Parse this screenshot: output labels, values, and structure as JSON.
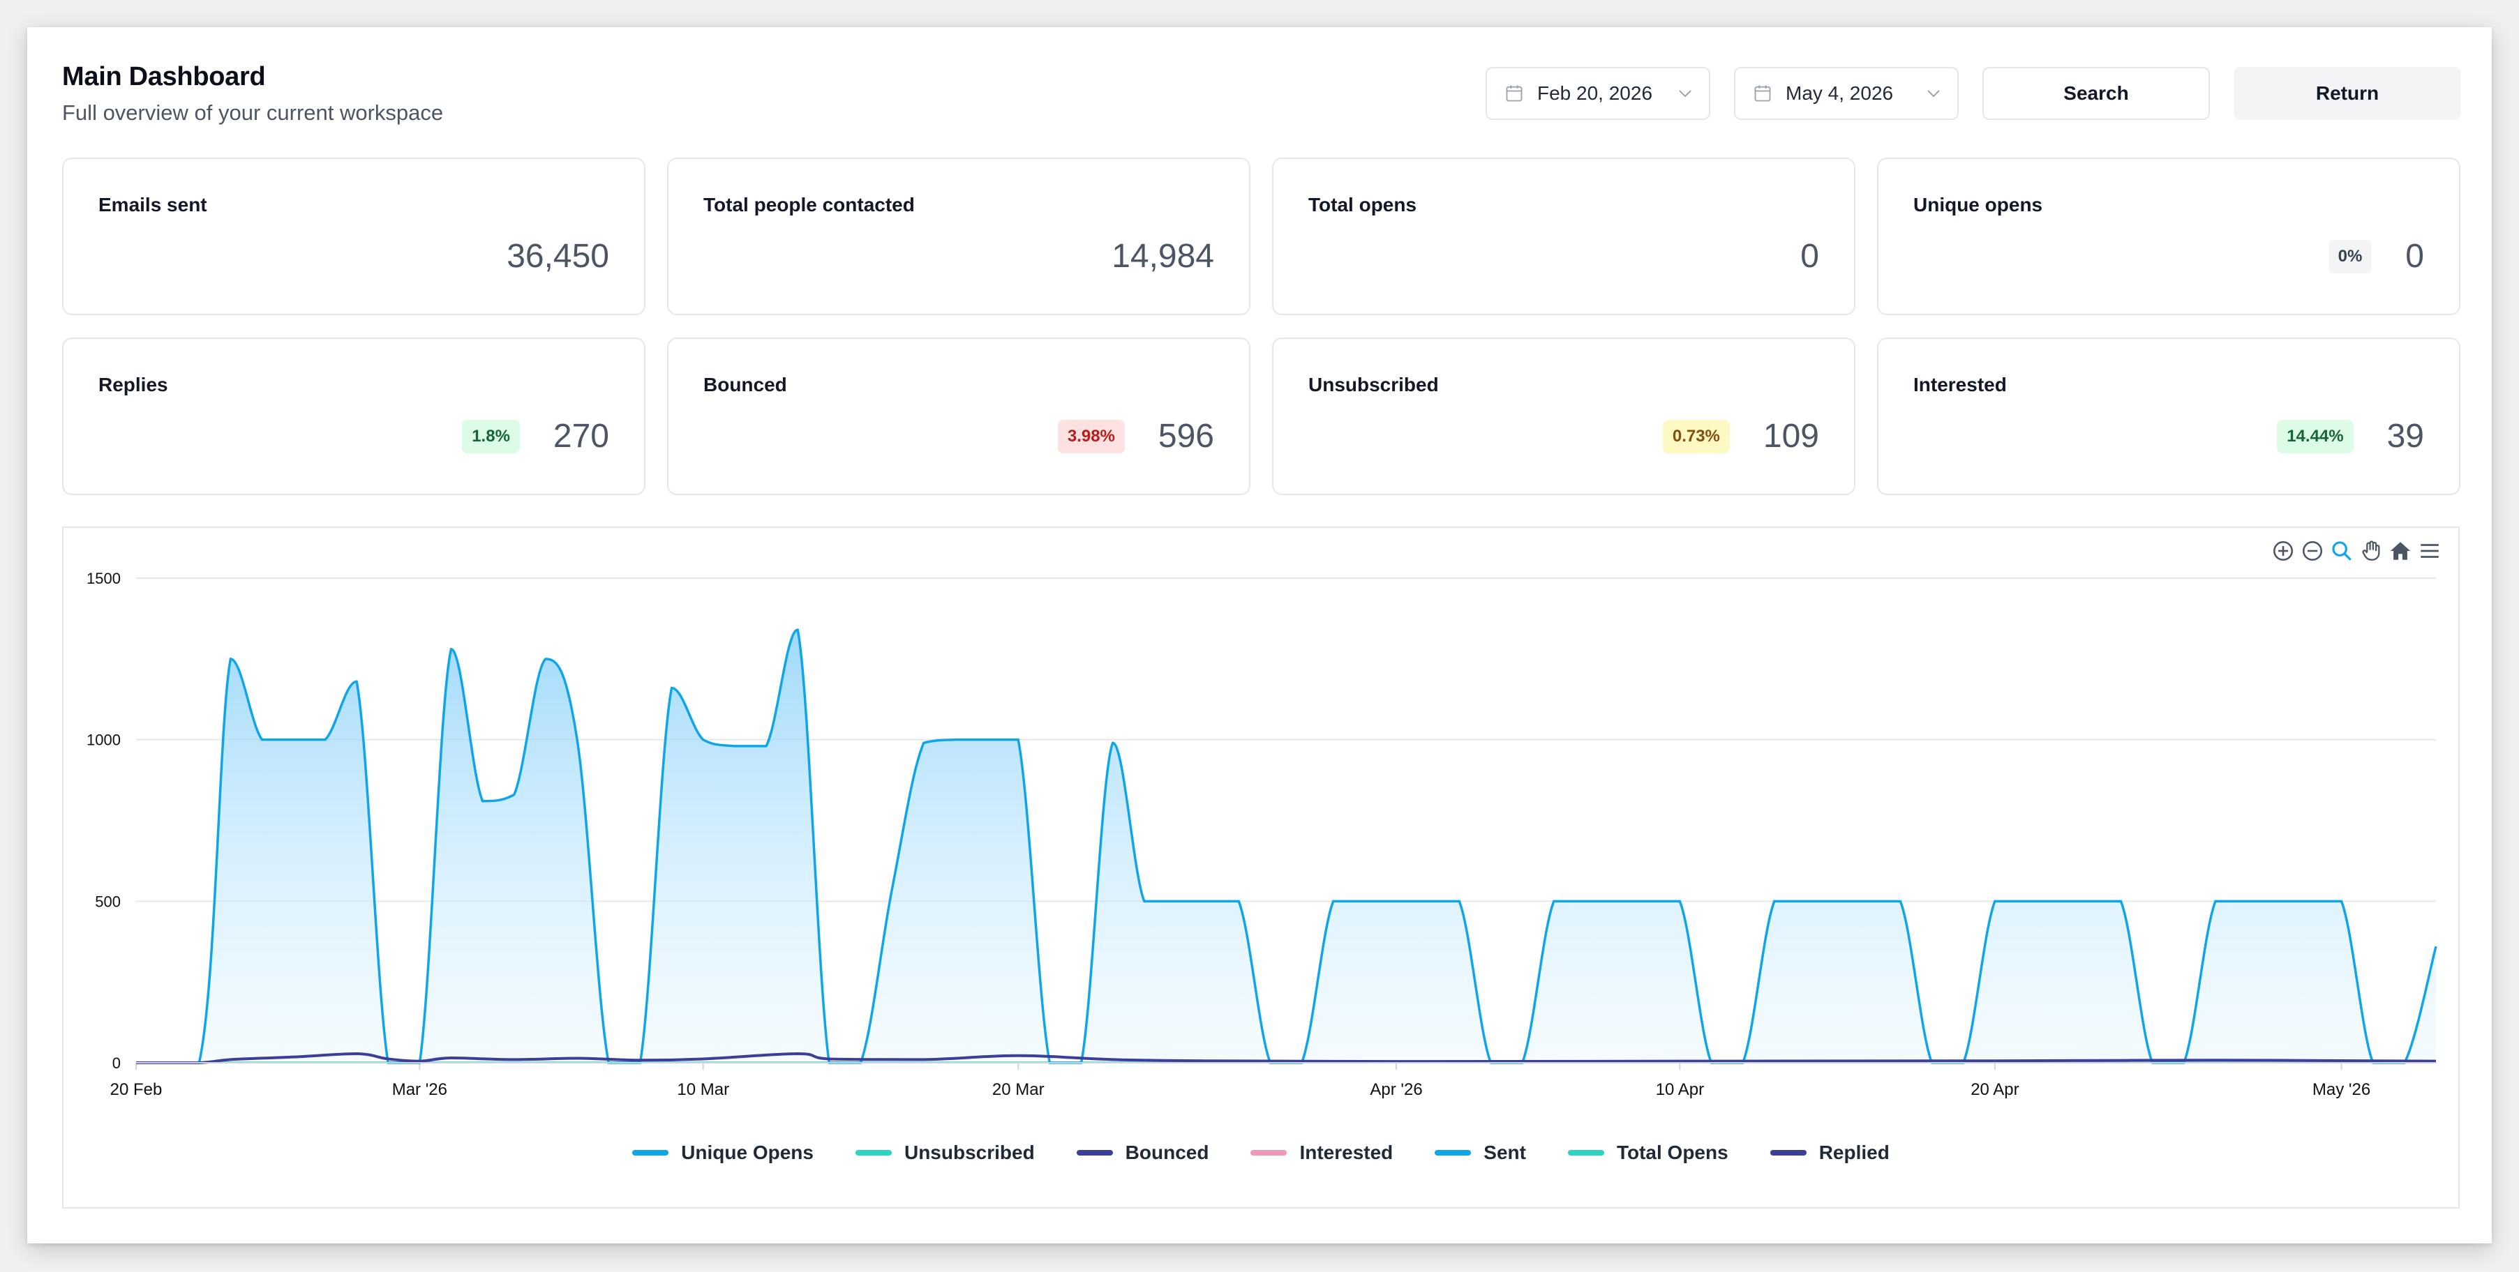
{
  "header": {
    "title": "Main Dashboard",
    "subtitle": "Full overview of your current workspace"
  },
  "controls": {
    "start_date": "Feb 20, 2026",
    "end_date": "May 4, 2026",
    "search_label": "Search",
    "return_label": "Return",
    "icons": [
      "calendar-icon",
      "chevron-down-icon"
    ]
  },
  "stats": [
    {
      "title": "Emails sent",
      "value": "36,450",
      "badge": "",
      "badge_color": ""
    },
    {
      "title": "Total people contacted",
      "value": "14,984",
      "badge": "",
      "badge_color": ""
    },
    {
      "title": "Total opens",
      "value": "0",
      "badge": "",
      "badge_color": ""
    },
    {
      "title": "Unique opens",
      "value": "0",
      "badge": "0%",
      "badge_color": "gray"
    },
    {
      "title": "Replies",
      "value": "270",
      "badge": "1.8%",
      "badge_color": "green"
    },
    {
      "title": "Bounced",
      "value": "596",
      "badge": "3.98%",
      "badge_color": "red"
    },
    {
      "title": "Unsubscribed",
      "value": "109",
      "badge": "0.73%",
      "badge_color": "yellow"
    },
    {
      "title": "Interested",
      "value": "39",
      "badge": "14.44%",
      "badge_color": "green"
    }
  ],
  "toolbar": {
    "icons": [
      "zoom-in-icon",
      "zoom-out-icon",
      "zoom-select-icon",
      "pan-hand-icon",
      "home-icon",
      "menu-icon"
    ]
  },
  "chart_data": {
    "type": "area",
    "x_ticks": [
      "20 Feb",
      "Mar '26",
      "10 Mar",
      "20 Mar",
      "Apr '26",
      "10 Apr",
      "20 Apr",
      "May '26"
    ],
    "x_tick_dates": [
      "2026-02-20",
      "2026-03-01",
      "2026-03-10",
      "2026-03-20",
      "2026-04-01",
      "2026-04-10",
      "2026-04-20",
      "2026-05-01"
    ],
    "y_ticks": [
      0,
      500,
      1000,
      1500
    ],
    "ylim": [
      0,
      1500
    ],
    "xlim": [
      "2026-02-20",
      "2026-05-04"
    ],
    "grid": true,
    "legend_placement": "bottom",
    "series": [
      {
        "name": "Unique Opens",
        "color": "#0ea5e9",
        "values": []
      },
      {
        "name": "Unsubscribed",
        "color": "#2dd4bf",
        "values": []
      },
      {
        "name": "Bounced",
        "color": "#3b3f99",
        "values": []
      },
      {
        "name": "Interested",
        "color": "#f09ab5",
        "values": []
      },
      {
        "name": "Sent",
        "color": "#0ea5e9",
        "points": [
          [
            "2026-02-20",
            0
          ],
          [
            "2026-02-22",
            0
          ],
          [
            "2026-02-23",
            1250
          ],
          [
            "2026-02-24",
            1000
          ],
          [
            "2026-02-25",
            1000
          ],
          [
            "2026-02-26",
            1000
          ],
          [
            "2026-02-27",
            1180
          ],
          [
            "2026-02-28",
            0
          ],
          [
            "2026-03-01",
            0
          ],
          [
            "2026-03-02",
            1280
          ],
          [
            "2026-03-03",
            810
          ],
          [
            "2026-03-04",
            830
          ],
          [
            "2026-03-05",
            1250
          ],
          [
            "2026-03-06",
            1000
          ],
          [
            "2026-03-07",
            0
          ],
          [
            "2026-03-08",
            0
          ],
          [
            "2026-03-09",
            1160
          ],
          [
            "2026-03-10",
            1000
          ],
          [
            "2026-03-11",
            980
          ],
          [
            "2026-03-12",
            980
          ],
          [
            "2026-03-13",
            1340
          ],
          [
            "2026-03-14",
            0
          ],
          [
            "2026-03-15",
            0
          ],
          [
            "2026-03-16",
            540
          ],
          [
            "2026-03-17",
            990
          ],
          [
            "2026-03-18",
            1000
          ],
          [
            "2026-03-19",
            1000
          ],
          [
            "2026-03-20",
            1000
          ],
          [
            "2026-03-21",
            0
          ],
          [
            "2026-03-22",
            0
          ],
          [
            "2026-03-23",
            990
          ],
          [
            "2026-03-24",
            500
          ],
          [
            "2026-03-25",
            500
          ],
          [
            "2026-03-26",
            500
          ],
          [
            "2026-03-27",
            500
          ],
          [
            "2026-03-28",
            0
          ],
          [
            "2026-03-29",
            0
          ],
          [
            "2026-03-30",
            500
          ],
          [
            "2026-03-31",
            500
          ],
          [
            "2026-04-01",
            500
          ],
          [
            "2026-04-02",
            500
          ],
          [
            "2026-04-03",
            500
          ],
          [
            "2026-04-04",
            0
          ],
          [
            "2026-04-05",
            0
          ],
          [
            "2026-04-06",
            500
          ],
          [
            "2026-04-07",
            500
          ],
          [
            "2026-04-08",
            500
          ],
          [
            "2026-04-09",
            500
          ],
          [
            "2026-04-10",
            500
          ],
          [
            "2026-04-11",
            0
          ],
          [
            "2026-04-12",
            0
          ],
          [
            "2026-04-13",
            500
          ],
          [
            "2026-04-14",
            500
          ],
          [
            "2026-04-15",
            500
          ],
          [
            "2026-04-16",
            500
          ],
          [
            "2026-04-17",
            500
          ],
          [
            "2026-04-18",
            0
          ],
          [
            "2026-04-19",
            0
          ],
          [
            "2026-04-20",
            500
          ],
          [
            "2026-04-21",
            500
          ],
          [
            "2026-04-22",
            500
          ],
          [
            "2026-04-23",
            500
          ],
          [
            "2026-04-24",
            500
          ],
          [
            "2026-04-25",
            0
          ],
          [
            "2026-04-26",
            0
          ],
          [
            "2026-04-27",
            500
          ],
          [
            "2026-04-28",
            500
          ],
          [
            "2026-04-29",
            500
          ],
          [
            "2026-04-30",
            500
          ],
          [
            "2026-05-01",
            500
          ],
          [
            "2026-05-02",
            0
          ],
          [
            "2026-05-03",
            0
          ],
          [
            "2026-05-04",
            360
          ]
        ]
      },
      {
        "name": "Total Opens",
        "color": "#2dd4bf",
        "values": []
      },
      {
        "name": "Replied",
        "color": "#3b3f99",
        "points": [
          [
            "2026-02-20",
            0
          ],
          [
            "2026-02-22",
            0
          ],
          [
            "2026-02-23",
            10
          ],
          [
            "2026-02-25",
            18
          ],
          [
            "2026-02-27",
            28
          ],
          [
            "2026-02-28",
            12
          ],
          [
            "2026-03-01",
            5
          ],
          [
            "2026-03-02",
            15
          ],
          [
            "2026-03-04",
            10
          ],
          [
            "2026-03-06",
            14
          ],
          [
            "2026-03-08",
            8
          ],
          [
            "2026-03-10",
            12
          ],
          [
            "2026-03-13",
            28
          ],
          [
            "2026-03-14",
            12
          ],
          [
            "2026-03-17",
            10
          ],
          [
            "2026-03-20",
            22
          ],
          [
            "2026-03-23",
            10
          ],
          [
            "2026-03-26",
            6
          ],
          [
            "2026-04-01",
            4
          ],
          [
            "2026-04-10",
            5
          ],
          [
            "2026-04-20",
            6
          ],
          [
            "2026-04-27",
            8
          ],
          [
            "2026-05-04",
            5
          ]
        ]
      }
    ]
  }
}
